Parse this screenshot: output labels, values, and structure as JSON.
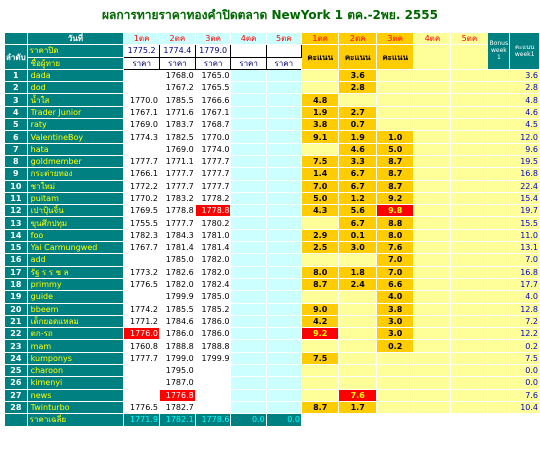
{
  "title": "ผลการทายราคาทองคำปิดตลาด NewYork 1 ตค.-2พย. 2555",
  "headers": {
    "round": "วันที่",
    "order": "ลำดับ",
    "close_price": "ราคาปิด",
    "member": "ชื่อผู้ทาย",
    "price": "ราคา",
    "score": "คะแนน",
    "bonus_week": "Bonus week 1",
    "score_week": "คะแนน week1",
    "avg": "ราคาเฉลี่ย"
  },
  "dates": [
    "1ตค",
    "2ตค",
    "3ตค",
    "4ตค",
    "5ตค"
  ],
  "close_prices": [
    "1775.2",
    "1774.4",
    "1779.0",
    "",
    ""
  ],
  "averages": [
    "1771.9",
    "1782.1",
    "1778.6",
    "0.0",
    "0.0"
  ],
  "rows": [
    {
      "no": "1",
      "name": "dada",
      "p": [
        "",
        "1768.0",
        "1765.0",
        "",
        ""
      ],
      "s": [
        "",
        "3.6",
        "",
        "",
        ""
      ],
      "w": "3.6"
    },
    {
      "no": "2",
      "name": "dod",
      "p": [
        "",
        "1767.2",
        "1765.5",
        "",
        ""
      ],
      "s": [
        "",
        "2.8",
        "",
        "",
        ""
      ],
      "w": "2.8"
    },
    {
      "no": "3",
      "name": "น้ำใส",
      "p": [
        "1770.0",
        "1785.5",
        "1766.6",
        "",
        ""
      ],
      "s": [
        "4.8",
        "",
        "",
        "",
        ""
      ],
      "w": "4.8"
    },
    {
      "no": "4",
      "name": "Trader Junior",
      "p": [
        "1767.1",
        "1771.6",
        "1767.1",
        "",
        ""
      ],
      "s": [
        "1.9",
        "2.7",
        "",
        "",
        ""
      ],
      "w": "4.6"
    },
    {
      "no": "5",
      "name": "raty",
      "p": [
        "1769.0",
        "1783.7",
        "1768.7",
        "",
        ""
      ],
      "s": [
        "3.8",
        "0.7",
        "",
        "",
        ""
      ],
      "w": "4.5"
    },
    {
      "no": "6",
      "name": "ValentineBoy",
      "p": [
        "1774.3",
        "1782.5",
        "1770.0",
        "",
        ""
      ],
      "s": [
        "9.1",
        "1.9",
        "1.0",
        "",
        ""
      ],
      "w": "12.0"
    },
    {
      "no": "7",
      "name": "hata",
      "p": [
        "",
        "1769.0",
        "1774.0",
        "",
        ""
      ],
      "s": [
        "",
        "4.6",
        "5.0",
        "",
        ""
      ],
      "w": "9.6"
    },
    {
      "no": "8",
      "name": "goldmember",
      "p": [
        "1777.7",
        "1771.1",
        "1777.7",
        "",
        ""
      ],
      "s": [
        "7.5",
        "3.3",
        "8.7",
        "",
        ""
      ],
      "w": "19.5"
    },
    {
      "no": "9",
      "name": "กระต่ายทอง",
      "p": [
        "1766.1",
        "1777.7",
        "1777.7",
        "",
        ""
      ],
      "s": [
        "1.4",
        "6.7",
        "8.7",
        "",
        ""
      ],
      "w": "16.8"
    },
    {
      "no": "10",
      "name": "ชาใหม่",
      "p": [
        "1772.2",
        "1777.7",
        "1777.7",
        "",
        ""
      ],
      "s": [
        "7.0",
        "6.7",
        "8.7",
        "",
        ""
      ],
      "w": "22.4"
    },
    {
      "no": "11",
      "name": "puitam",
      "p": [
        "1770.2",
        "1783.2",
        "1778.2",
        "",
        ""
      ],
      "s": [
        "5.0",
        "1.2",
        "9.2",
        "",
        ""
      ],
      "w": "15.4"
    },
    {
      "no": "12",
      "name": "เปาปุ้นจิ้น",
      "p": [
        "1769.5",
        "1778.8",
        "1778.8",
        "",
        ""
      ],
      "s": [
        "4.3",
        "5.6",
        "9.8",
        "",
        ""
      ],
      "w": "19.7"
    },
    {
      "no": "13",
      "name": "ขุนศึกปทุม",
      "p": [
        "1755.5",
        "1777.7",
        "1780.2",
        "",
        ""
      ],
      "s": [
        "",
        "6.7",
        "8.8",
        "",
        ""
      ],
      "w": "15.5"
    },
    {
      "no": "14",
      "name": "foo",
      "p": [
        "1782.3",
        "1784.3",
        "1781.0",
        "",
        ""
      ],
      "s": [
        "2.9",
        "0.1",
        "8.0",
        "",
        ""
      ],
      "w": "11.0"
    },
    {
      "no": "15",
      "name": "Yai Carmungwed",
      "p": [
        "1767.7",
        "1781.4",
        "1781.4",
        "",
        ""
      ],
      "s": [
        "2.5",
        "3.0",
        "7.6",
        "",
        ""
      ],
      "w": "13.1"
    },
    {
      "no": "16",
      "name": "add",
      "p": [
        "",
        "1785.0",
        "1782.0",
        "",
        ""
      ],
      "s": [
        "",
        "",
        "7.0",
        "",
        ""
      ],
      "w": "7.0"
    },
    {
      "no": "17",
      "name": "รัฐ ร ร ช ล",
      "p": [
        "1773.2",
        "1782.6",
        "1782.0",
        "",
        ""
      ],
      "s": [
        "8.0",
        "1.8",
        "7.0",
        "",
        ""
      ],
      "w": "16.8"
    },
    {
      "no": "18",
      "name": "primmy",
      "p": [
        "1776.5",
        "1782.0",
        "1782.4",
        "",
        ""
      ],
      "s": [
        "8.7",
        "2.4",
        "6.6",
        "",
        ""
      ],
      "w": "17.7"
    },
    {
      "no": "19",
      "name": "guide",
      "p": [
        "",
        "1799.9",
        "1785.0",
        "",
        ""
      ],
      "s": [
        "",
        "",
        "4.0",
        "",
        ""
      ],
      "w": "4.0"
    },
    {
      "no": "20",
      "name": "bbeem",
      "p": [
        "1774.2",
        "1785.5",
        "1785.2",
        "",
        ""
      ],
      "s": [
        "9.0",
        "",
        "3.8",
        "",
        ""
      ],
      "w": "12.8"
    },
    {
      "no": "21",
      "name": "เด็กยอดแหลม",
      "p": [
        "1771.2",
        "1784.6",
        "1786.0",
        "",
        ""
      ],
      "s": [
        "4.2",
        "",
        "3.0",
        "",
        ""
      ],
      "w": "7.2"
    },
    {
      "no": "22",
      "name": "ตก-รถ",
      "p": [
        "1776.0",
        "1786.0",
        "1786.0",
        "",
        ""
      ],
      "s": [
        "9.2",
        "",
        "3.0",
        "",
        ""
      ],
      "w": "12.2"
    },
    {
      "no": "23",
      "name": "mam",
      "p": [
        "1760.8",
        "1788.8",
        "1788.8",
        "",
        ""
      ],
      "s": [
        "",
        "",
        "0.2",
        "",
        ""
      ],
      "w": "0.2"
    },
    {
      "no": "24",
      "name": "kumponys",
      "p": [
        "1777.7",
        "1799.0",
        "1799.9",
        "",
        ""
      ],
      "s": [
        "7.5",
        "",
        "",
        "",
        ""
      ],
      "w": "7.5"
    },
    {
      "no": "25",
      "name": "charoon",
      "p": [
        "",
        "1795.0",
        "",
        "",
        ""
      ],
      "s": [
        "",
        "",
        "",
        "",
        ""
      ],
      "w": "0.0"
    },
    {
      "no": "26",
      "name": "kimenyi",
      "p": [
        "",
        "1787.0",
        "",
        "",
        ""
      ],
      "s": [
        "",
        "",
        "",
        "",
        ""
      ],
      "w": "0.0"
    },
    {
      "no": "27",
      "name": "news",
      "p": [
        "",
        "1776.8",
        "",
        "",
        ""
      ],
      "s": [
        "",
        "7.6",
        "",
        "",
        ""
      ],
      "w": "7.6"
    },
    {
      "no": "28",
      "name": "Twinturbo",
      "p": [
        "1776.5",
        "1782.7",
        "",
        "",
        ""
      ],
      "s": [
        "8.7",
        "1.7",
        "",
        "",
        ""
      ],
      "w": "10.4"
    }
  ],
  "highlights": {
    "red_price": [
      [
        12,
        2
      ],
      [
        22,
        0
      ],
      [
        27,
        1
      ]
    ],
    "red_score": [
      [
        12,
        2
      ],
      [
        22,
        0
      ],
      [
        27,
        1
      ]
    ]
  },
  "colors": {
    "teal": "#008080",
    "yellow": "#ffff00",
    "score_bg": "#ffff99",
    "score_active": "#ffcc00",
    "highlight": "#ff0000",
    "title": "#006600"
  }
}
